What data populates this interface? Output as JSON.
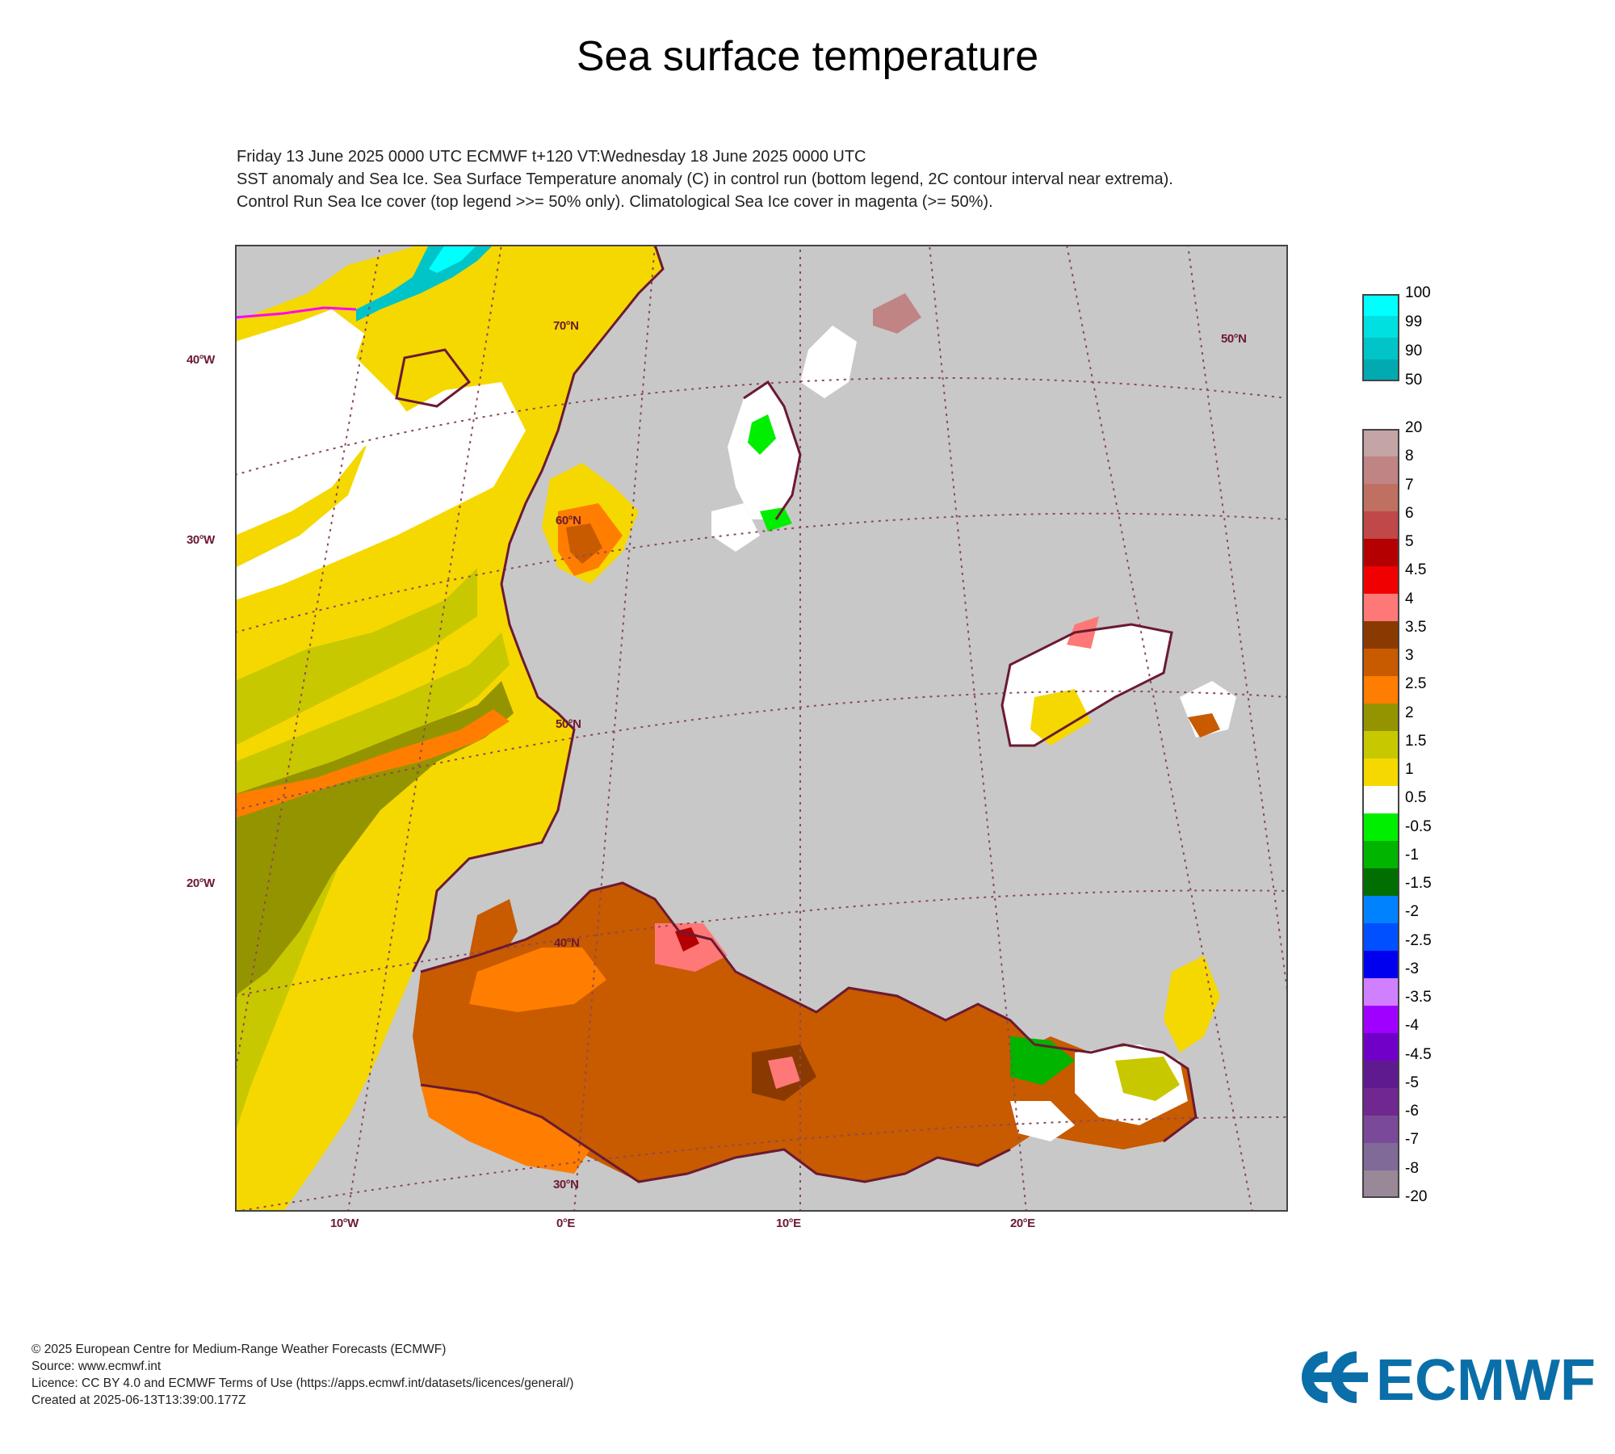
{
  "title": "Sea surface temperature",
  "subtitle_lines": [
    "Friday 13 June 2025 0000 UTC  ECMWF  t+120  VT:Wednesday 18 June 2025 0000 UTC",
    "SST anomaly and Sea Ice. Sea Surface Temperature anomaly (C) in control run (bottom legend, 2C contour interval near extrema).",
    "Control Run Sea Ice cover (top legend >>= 50% only). Climatological Sea Ice cover in magenta (>= 50%)."
  ],
  "map": {
    "land_color": "#c8c8c8",
    "coast_color": "#6b1a32",
    "graticule_color": "#8a4a5a",
    "left_labels": [
      "40°W",
      "30°W",
      "20°W"
    ],
    "bottom_labels": [
      "10°W",
      "0°E",
      "10°E",
      "20°E"
    ],
    "inner_labels": [
      "70°N",
      "60°N",
      "50°N",
      "40°N",
      "30°N",
      "50°N"
    ]
  },
  "ice_legend": {
    "ticks": [
      "100",
      "99",
      "90",
      "50"
    ],
    "colors": [
      "#00ffff",
      "#00e0e0",
      "#00c4c8",
      "#00aab0"
    ]
  },
  "sst_legend": {
    "ticks": [
      "20",
      "8",
      "7",
      "6",
      "5",
      "4.5",
      "4",
      "3.5",
      "3",
      "2.5",
      "2",
      "1.5",
      "1",
      "0.5",
      "-0.5",
      "-1",
      "-1.5",
      "-2",
      "-2.5",
      "-3",
      "-3.5",
      "-4",
      "-4.5",
      "-5",
      "-6",
      "-7",
      "-8",
      "-20"
    ],
    "colors": [
      "#c4a4a4",
      "#c08484",
      "#c07060",
      "#c04848",
      "#b40000",
      "#f00000",
      "#ff7878",
      "#8a3a00",
      "#c85a00",
      "#ff7d00",
      "#949400",
      "#c8c800",
      "#f5d800",
      "#ffffff",
      "#00ee00",
      "#00b400",
      "#006e00",
      "#0082ff",
      "#0050ff",
      "#0000ee",
      "#d080ff",
      "#a000ff",
      "#7000c8",
      "#601a90",
      "#702890",
      "#7a4a98",
      "#806a98",
      "#988898"
    ]
  },
  "footer": [
    "© 2025 European Centre for Medium-Range Weather Forecasts (ECMWF)",
    "Source: www.ecmwf.int",
    "Licence: CC BY 4.0 and ECMWF Terms of Use (https://apps.ecmwf.int/datasets/licences/general/)",
    "Created at 2025-06-13T13:39:00.177Z"
  ],
  "logo_text": "ECMWF",
  "brand_color": "#0a6fa8"
}
